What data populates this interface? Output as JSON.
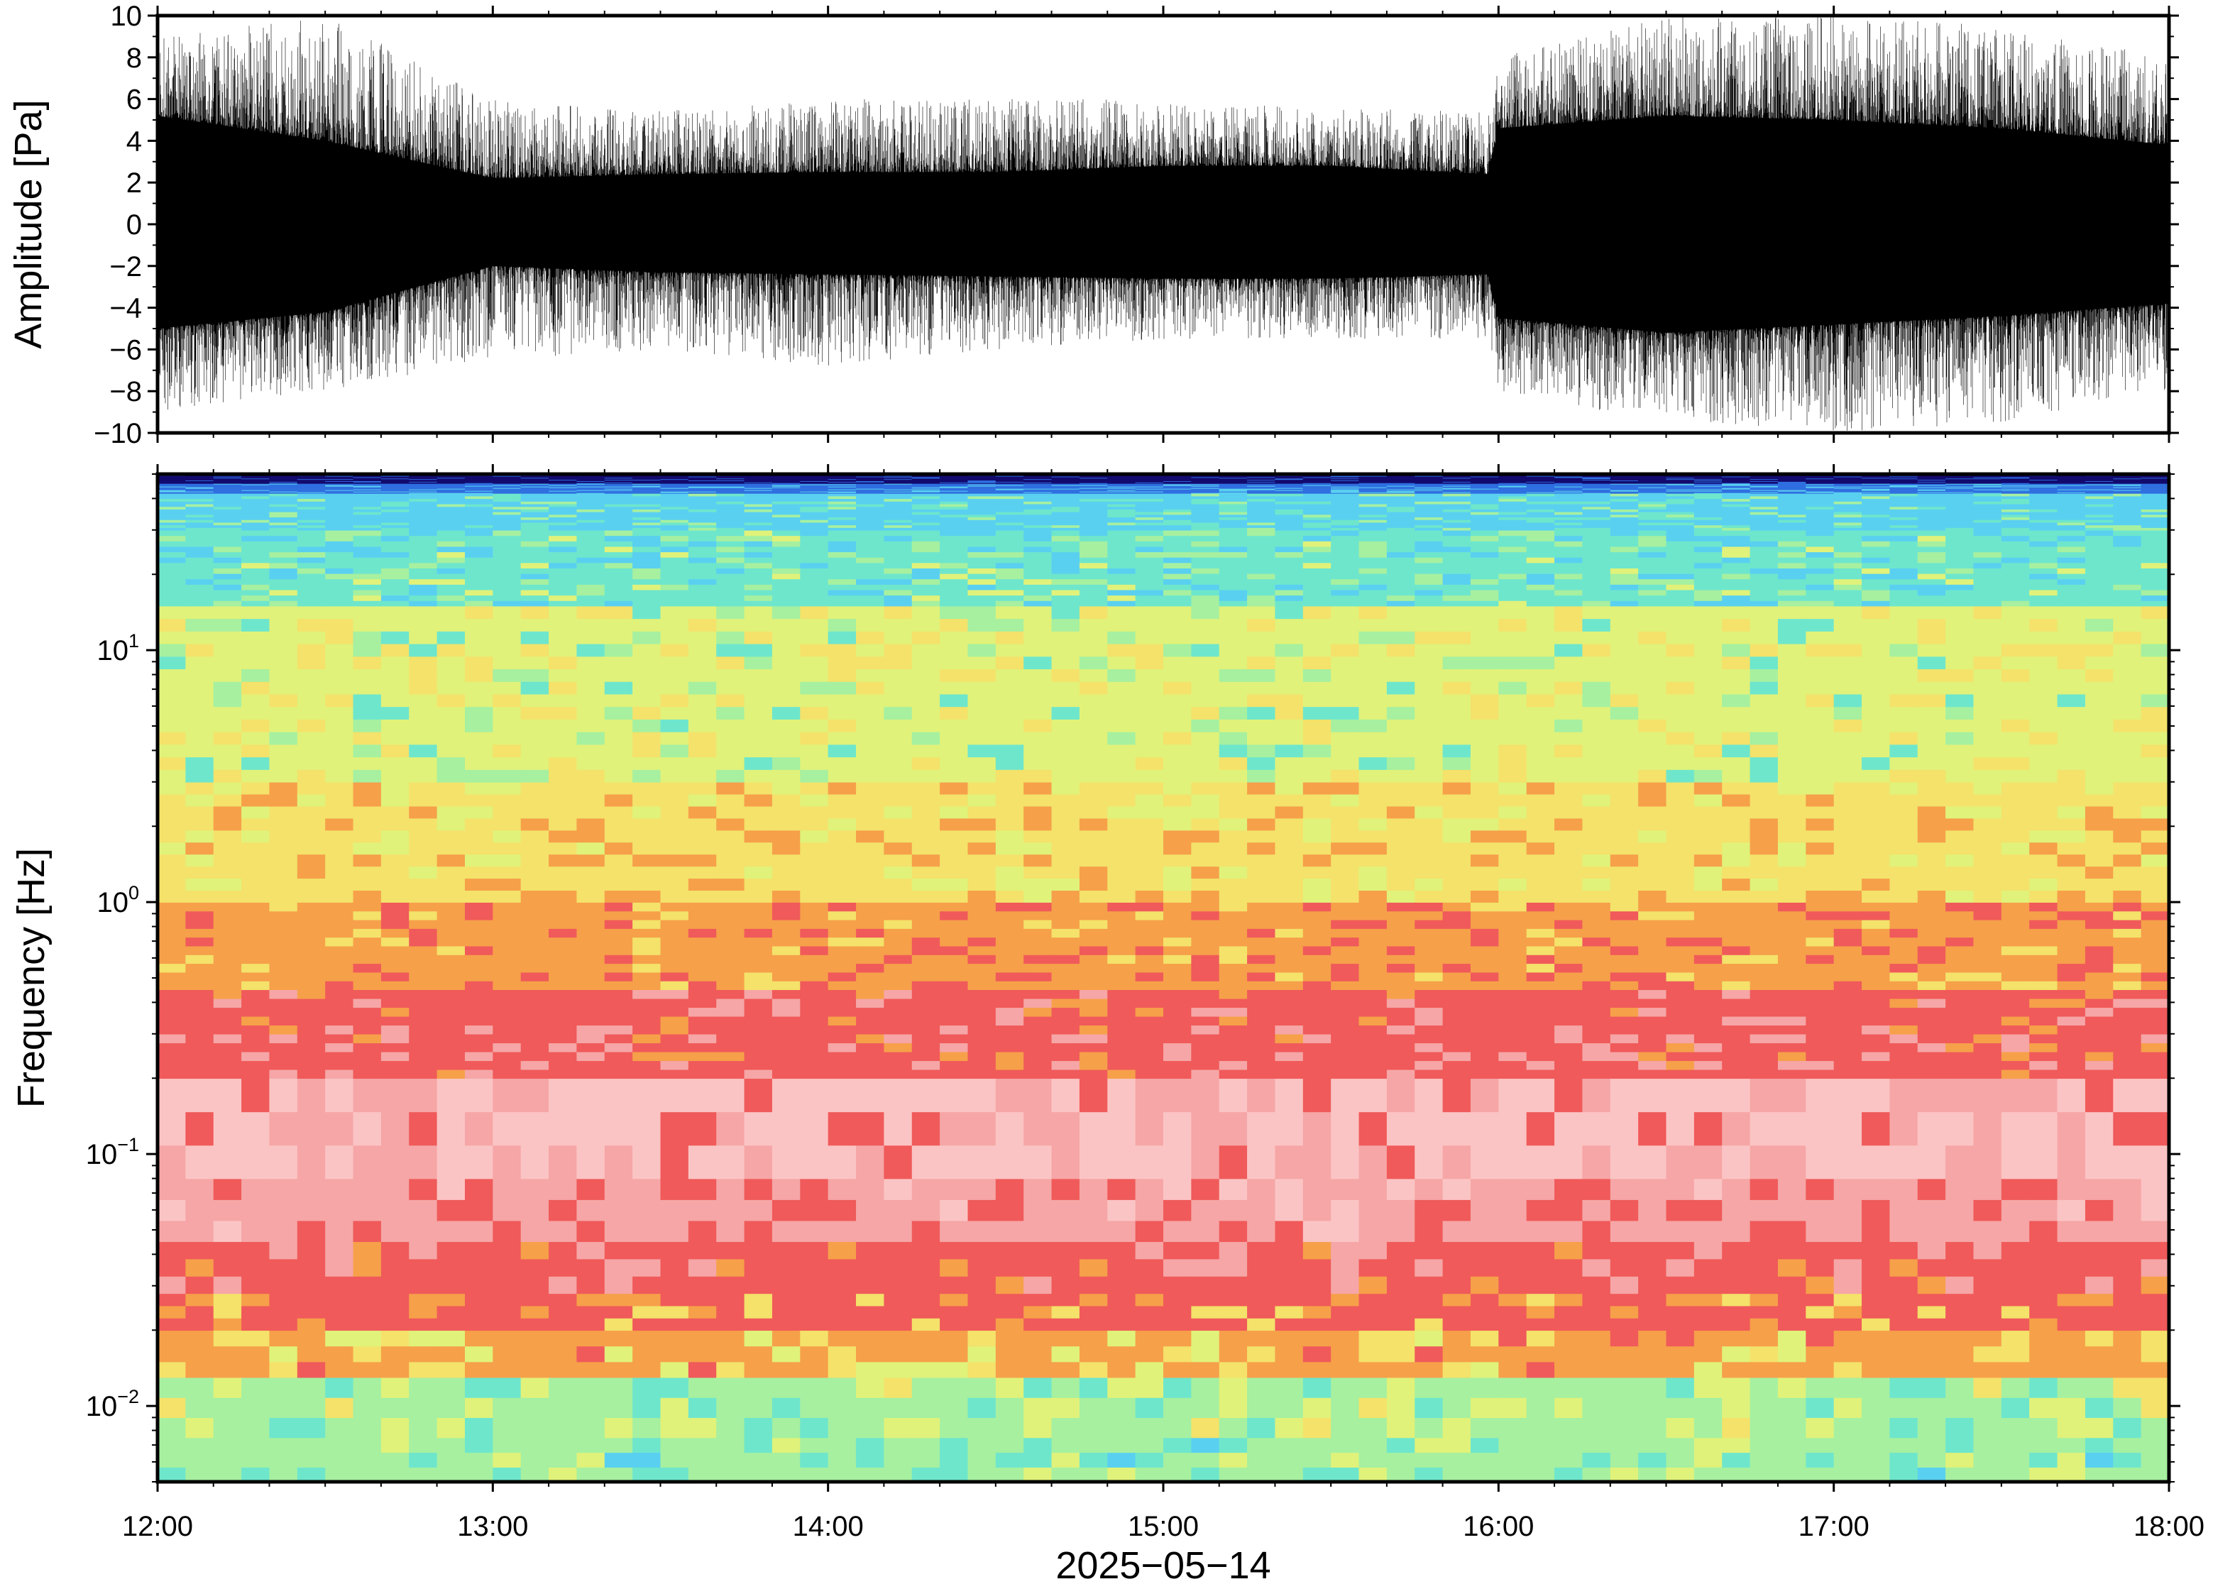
{
  "chart_data": [
    {
      "type": "line",
      "name": "waveform",
      "ylabel": "Amplitude [Pa]",
      "xlim": [
        "12:00",
        "18:00"
      ],
      "ylim": [
        -10,
        10
      ],
      "yticks": [
        {
          "value": 10,
          "label": "10"
        },
        {
          "value": 8,
          "label": "8"
        },
        {
          "value": 6,
          "label": "6"
        },
        {
          "value": 4,
          "label": "4"
        },
        {
          "value": 2,
          "label": "2"
        },
        {
          "value": 0,
          "label": "0"
        },
        {
          "value": -2,
          "label": "−2"
        },
        {
          "value": -4,
          "label": "−4"
        },
        {
          "value": -6,
          "label": "−6"
        },
        {
          "value": -8,
          "label": "−8"
        },
        {
          "value": -10,
          "label": "−10"
        }
      ],
      "line_color": "#000000",
      "envelope": [
        {
          "t": "12:00",
          "lower": -5.0,
          "upper": 5.2,
          "peak_low": -9.0,
          "peak_high": 9.0
        },
        {
          "t": "12:30",
          "lower": -4.2,
          "upper": 4.0,
          "peak_low": -8.0,
          "peak_high": 10.0
        },
        {
          "t": "13:00",
          "lower": -2.0,
          "upper": 2.2,
          "peak_low": -6.5,
          "peak_high": 6.0
        },
        {
          "t": "13:30",
          "lower": -2.3,
          "upper": 2.4,
          "peak_low": -6.0,
          "peak_high": 5.5
        },
        {
          "t": "14:00",
          "lower": -2.4,
          "upper": 2.5,
          "peak_low": -6.8,
          "peak_high": 6.0
        },
        {
          "t": "14:30",
          "lower": -2.5,
          "upper": 2.5,
          "peak_low": -6.0,
          "peak_high": 6.0
        },
        {
          "t": "15:00",
          "lower": -2.6,
          "upper": 2.8,
          "peak_low": -5.5,
          "peak_high": 6.0
        },
        {
          "t": "15:30",
          "lower": -2.6,
          "upper": 2.8,
          "peak_low": -5.5,
          "peak_high": 5.5
        },
        {
          "t": "15:58",
          "lower": -2.4,
          "upper": 2.4,
          "peak_low": -5.5,
          "peak_high": 5.5
        },
        {
          "t": "16:00",
          "lower": -4.5,
          "upper": 4.6,
          "peak_low": -8.0,
          "peak_high": 8.0
        },
        {
          "t": "16:30",
          "lower": -5.2,
          "upper": 5.2,
          "peak_low": -9.5,
          "peak_high": 10.0
        },
        {
          "t": "17:00",
          "lower": -4.8,
          "upper": 5.0,
          "peak_low": -10.0,
          "peak_high": 10.0
        },
        {
          "t": "17:30",
          "lower": -4.4,
          "upper": 4.6,
          "peak_low": -9.5,
          "peak_high": 9.5
        },
        {
          "t": "18:00",
          "lower": -3.8,
          "upper": 3.8,
          "peak_low": -8.0,
          "peak_high": 8.0
        }
      ]
    },
    {
      "type": "heatmap",
      "name": "spectrogram",
      "ylabel": "Frequency [Hz]",
      "xlabel": "2025−05−14",
      "xlim": [
        "12:00",
        "18:00"
      ],
      "ylim": [
        0.005,
        50
      ],
      "yscale": "log",
      "xticks": [
        "12:00",
        "13:00",
        "14:00",
        "15:00",
        "16:00",
        "17:00",
        "18:00"
      ],
      "yticks": [
        {
          "value": 10,
          "base": "10",
          "exp": "1"
        },
        {
          "value": 1,
          "base": "10",
          "exp": "0"
        },
        {
          "value": 0.1,
          "base": "10",
          "exp": "−1"
        },
        {
          "value": 0.01,
          "base": "10",
          "exp": "−2"
        }
      ],
      "colors": {
        "deep_blue": "#120a6e",
        "blue": "#2f6fe0",
        "cyan": "#5ad0f0",
        "teal": "#6ee6cc",
        "light_green": "#a6f0a0",
        "yellow_green": "#e0f27a",
        "yellow": "#f4e26a",
        "orange": "#f6a04a",
        "red": "#f05a5a",
        "pink": "#f6a6a6",
        "light_pink": "#fbc4c4"
      },
      "frequency_bands": [
        {
          "f_min": 46,
          "f_max": 50,
          "color": "deep_blue"
        },
        {
          "f_min": 42,
          "f_max": 46,
          "color": "blue"
        },
        {
          "f_min": 15,
          "f_max": 42,
          "color": "cyan"
        },
        {
          "f_min": 3,
          "f_max": 15,
          "color": "yellow_green"
        },
        {
          "f_min": 1,
          "f_max": 3,
          "color": "yellow"
        },
        {
          "f_min": 0.45,
          "f_max": 1,
          "color": "orange"
        },
        {
          "f_min": 0.2,
          "f_max": 0.45,
          "color": "red"
        },
        {
          "f_min": 0.045,
          "f_max": 0.2,
          "color": "pink"
        },
        {
          "f_min": 0.025,
          "f_max": 0.045,
          "color": "red"
        },
        {
          "f_min": 0.013,
          "f_max": 0.025,
          "color": "orange"
        },
        {
          "f_min": 0.005,
          "f_max": 0.013,
          "color": "light_green"
        }
      ]
    }
  ]
}
